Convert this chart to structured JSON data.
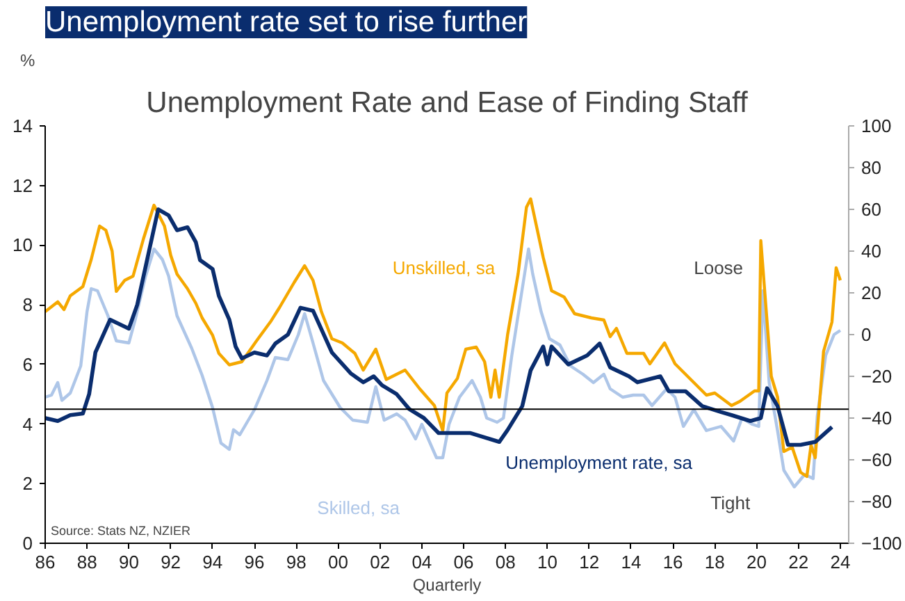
{
  "chart_data": {
    "type": "line",
    "title": "Unemployment rate set to rise further",
    "subtitle": "Unemployment Rate and Ease of Finding Staff",
    "xlabel": "Quarterly",
    "ylabel": "%",
    "xlim": [
      1986,
      2024.4
    ],
    "xticks": [
      {
        "value": 1986,
        "label": "86"
      },
      {
        "value": 1988,
        "label": "88"
      },
      {
        "value": 1990,
        "label": "90"
      },
      {
        "value": 1992,
        "label": "92"
      },
      {
        "value": 1994,
        "label": "94"
      },
      {
        "value": 1996,
        "label": "96"
      },
      {
        "value": 1998,
        "label": "98"
      },
      {
        "value": 2000,
        "label": "00"
      },
      {
        "value": 2002,
        "label": "02"
      },
      {
        "value": 2004,
        "label": "04"
      },
      {
        "value": 2006,
        "label": "06"
      },
      {
        "value": 2008,
        "label": "08"
      },
      {
        "value": 2010,
        "label": "10"
      },
      {
        "value": 2012,
        "label": "12"
      },
      {
        "value": 2014,
        "label": "14"
      },
      {
        "value": 2016,
        "label": "16"
      },
      {
        "value": 2018,
        "label": "18"
      },
      {
        "value": 2020,
        "label": "20"
      },
      {
        "value": 2022,
        "label": "22"
      },
      {
        "value": 2024,
        "label": "24"
      }
    ],
    "ylim": [
      0,
      14
    ],
    "yticks": [
      0,
      2,
      4,
      6,
      8,
      10,
      12,
      14
    ],
    "y2lim": [
      -100,
      100
    ],
    "y2ticks": [
      -100,
      -80,
      -60,
      -40,
      -20,
      0,
      20,
      40,
      60,
      80,
      100
    ],
    "grid": false,
    "legend": false,
    "ref_lines": [
      {
        "axis": "y",
        "value": 4.5,
        "color": "#000000"
      }
    ],
    "annotations": [
      "Loose",
      "Tight",
      "Source: Stats NZ, NZIER"
    ],
    "series": [
      {
        "name": "Skilled, sa",
        "color": "#aec6e8",
        "axis": "y2",
        "x": [
          1986.0,
          1986.3,
          1986.6,
          1986.8,
          1987.2,
          1987.7,
          1988.0,
          1988.2,
          1988.5,
          1989.0,
          1989.4,
          1990.0,
          1990.3,
          1990.8,
          1991.2,
          1991.6,
          1991.9,
          1992.3,
          1993.0,
          1993.5,
          1994.0,
          1994.4,
          1994.8,
          1995.0,
          1995.3,
          1996.0,
          1996.6,
          1997.0,
          1997.6,
          1998.1,
          1998.4,
          1998.8,
          1999.3,
          2000.1,
          2000.7,
          2001.4,
          2001.8,
          2002.2,
          2002.8,
          2003.2,
          2003.7,
          2004.0,
          2004.7,
          2005.0,
          2005.3,
          2005.8,
          2006.1,
          2006.4,
          2006.8,
          2007.1,
          2007.6,
          2007.9,
          2008.3,
          2008.8,
          2009.1,
          2009.3,
          2009.7,
          2010.1,
          2010.6,
          2011.1,
          2011.7,
          2012.2,
          2012.7,
          2013.0,
          2013.6,
          2014.1,
          2014.6,
          2015.0,
          2015.7,
          2016.1,
          2016.5,
          2017.0,
          2017.6,
          2018.3,
          2018.9,
          2019.3,
          2019.8,
          2020.1,
          2020.3,
          2020.6,
          2021.0,
          2021.3,
          2021.8,
          2022.3,
          2022.7,
          2022.9,
          2023.3,
          2023.7,
          2024.0
        ],
        "values": [
          -30,
          -29,
          -23,
          -31.5,
          -28,
          -15,
          11,
          22,
          21,
          9,
          -3,
          -4,
          7,
          28,
          41,
          36,
          28,
          9,
          -6.5,
          -19.5,
          -35,
          -52,
          -55,
          -45.6,
          -48,
          -36,
          -22,
          -11,
          -12,
          0,
          10,
          -4,
          -22,
          -35,
          -41,
          -42,
          -25,
          -41,
          -38,
          -41,
          -50,
          -43,
          -59,
          -59,
          -43,
          -30,
          -26,
          -22,
          -30,
          -40,
          -42,
          -40,
          -10,
          22,
          41,
          29,
          11,
          -2,
          -5,
          -15,
          -19,
          -23,
          -19,
          -26,
          -30,
          -29,
          -29,
          -34,
          -26,
          -30,
          -44,
          -36,
          -46,
          -44,
          -51,
          -40,
          -43,
          -44,
          21,
          -23,
          -46,
          -65,
          -73,
          -67,
          -69,
          -39,
          -10,
          0,
          2
        ]
      },
      {
        "name": "Unskilled, sa",
        "color": "#f5a800",
        "axis": "y2",
        "x": [
          1986.0,
          1986.6,
          1986.9,
          1987.2,
          1987.8,
          1988.2,
          1988.6,
          1988.9,
          1989.2,
          1989.4,
          1989.8,
          1990.2,
          1990.7,
          1991.2,
          1991.7,
          1992.0,
          1992.3,
          1992.8,
          1993.2,
          1993.5,
          1994.0,
          1994.3,
          1994.8,
          1995.4,
          1996.1,
          1996.8,
          1997.2,
          1997.9,
          1998.4,
          1998.8,
          1999.2,
          1999.7,
          2000.2,
          2000.8,
          2001.2,
          2001.8,
          2002.3,
          2003.2,
          2003.9,
          2004.6,
          2005.0,
          2005.2,
          2005.7,
          2006.1,
          2006.6,
          2007.0,
          2007.3,
          2007.5,
          2007.7,
          2008.1,
          2008.6,
          2009.0,
          2009.2,
          2009.8,
          2010.2,
          2010.8,
          2011.3,
          2012.1,
          2012.7,
          2013.0,
          2013.3,
          2013.8,
          2014.6,
          2014.9,
          2015.6,
          2016.1,
          2017.0,
          2017.6,
          2018.0,
          2018.8,
          2019.2,
          2019.9,
          2020.1,
          2020.2,
          2020.7,
          2021.0,
          2021.3,
          2021.7,
          2022.1,
          2022.4,
          2022.6,
          2022.8,
          2023.2,
          2023.6,
          2023.8,
          2024.0
        ],
        "values": [
          11,
          15.7,
          12,
          18.6,
          23,
          36,
          52,
          50,
          40,
          20.7,
          26,
          28,
          46,
          62,
          52,
          38,
          29,
          22,
          15,
          8,
          -0.3,
          -9,
          -14.5,
          -13,
          -3,
          6.6,
          13,
          25,
          33,
          26,
          11,
          -2,
          -4,
          -9,
          -17,
          -7,
          -21.5,
          -17,
          -26,
          -34,
          -46,
          -28,
          -21,
          -7,
          -6,
          -13,
          -30,
          -17,
          -30,
          0,
          29,
          61,
          65,
          37,
          21,
          18,
          10,
          8,
          7,
          -1,
          3,
          -9,
          -9,
          -14,
          -4,
          -14,
          -23,
          -29,
          -28,
          -34,
          -32,
          -27,
          -27,
          45,
          -20,
          -30,
          -56,
          -54,
          -66,
          -68,
          -53,
          -59,
          -8,
          6,
          32,
          26
        ]
      },
      {
        "name": "Unemployment rate, sa",
        "color": "#0a2d6e",
        "x": [
          1986.0,
          1986.6,
          1987.2,
          1987.8,
          1988.1,
          1988.4,
          1989.1,
          1990.0,
          1990.4,
          1991.4,
          1991.9,
          1992.3,
          1992.8,
          1993.2,
          1993.4,
          1994.0,
          1994.3,
          1994.8,
          1995.1,
          1995.4,
          1996.0,
          1996.6,
          1997.0,
          1997.6,
          1998.2,
          1998.8,
          1999.7,
          2000.6,
          2001.2,
          2001.7,
          2002.1,
          2002.8,
          2003.4,
          2004.1,
          2004.8,
          2006.3,
          2007.7,
          2008.1,
          2008.8,
          2009.2,
          2009.8,
          2010.0,
          2010.2,
          2011.0,
          2011.9,
          2012.5,
          2013.0,
          2013.9,
          2014.3,
          2015.4,
          2015.8,
          2016.6,
          2017.4,
          2018.3,
          2018.8,
          2019.7,
          2020.2,
          2020.5,
          2021.0,
          2021.5,
          2022.1,
          2022.8,
          2023.6
        ],
        "values": [
          4.2,
          4.1,
          4.3,
          4.35,
          5.0,
          6.4,
          7.5,
          7.2,
          8.0,
          11.2,
          11.0,
          10.5,
          10.6,
          10.1,
          9.5,
          9.2,
          8.3,
          7.5,
          6.6,
          6.2,
          6.4,
          6.3,
          6.7,
          7.0,
          7.9,
          7.8,
          6.4,
          5.7,
          5.4,
          5.6,
          5.3,
          5.0,
          4.5,
          4.2,
          3.7,
          3.7,
          3.4,
          3.8,
          4.6,
          5.8,
          6.6,
          6.0,
          6.6,
          6.0,
          6.3,
          6.7,
          5.9,
          5.6,
          5.4,
          5.6,
          5.1,
          5.1,
          4.6,
          4.4,
          4.3,
          4.1,
          4.2,
          5.2,
          4.6,
          3.3,
          3.3,
          3.4,
          3.9
        ]
      }
    ]
  }
}
